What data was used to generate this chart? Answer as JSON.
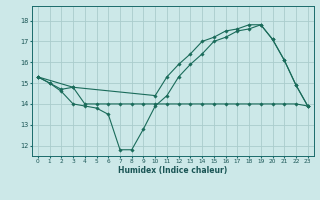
{
  "title": "",
  "xlabel": "Humidex (Indice chaleur)",
  "bg_color": "#cce8e8",
  "grid_color": "#aacccc",
  "line_color": "#1a6b5a",
  "xlim": [
    -0.5,
    23.5
  ],
  "ylim": [
    11.5,
    18.7
  ],
  "xticks": [
    0,
    1,
    2,
    3,
    4,
    5,
    6,
    7,
    8,
    9,
    10,
    11,
    12,
    13,
    14,
    15,
    16,
    17,
    18,
    19,
    20,
    21,
    22,
    23
  ],
  "yticks": [
    12,
    13,
    14,
    15,
    16,
    17,
    18
  ],
  "line1_x": [
    0,
    1,
    2,
    3,
    4,
    5,
    6,
    7,
    8,
    9,
    10,
    11,
    12,
    13,
    14,
    15,
    16,
    17,
    18,
    19,
    20,
    21,
    22,
    23
  ],
  "line1_y": [
    15.3,
    15.0,
    14.6,
    14.0,
    13.9,
    13.8,
    13.5,
    11.8,
    11.8,
    12.8,
    13.9,
    14.4,
    15.3,
    15.9,
    16.4,
    17.0,
    17.2,
    17.5,
    17.6,
    17.8,
    17.1,
    16.1,
    14.9,
    13.9
  ],
  "line2_x": [
    0,
    1,
    2,
    3,
    4,
    5,
    6,
    7,
    8,
    9,
    10,
    11,
    12,
    13,
    14,
    15,
    16,
    17,
    18,
    19,
    20,
    21,
    22,
    23
  ],
  "line2_y": [
    15.3,
    15.0,
    14.7,
    14.8,
    14.0,
    14.0,
    14.0,
    14.0,
    14.0,
    14.0,
    14.0,
    14.0,
    14.0,
    14.0,
    14.0,
    14.0,
    14.0,
    14.0,
    14.0,
    14.0,
    14.0,
    14.0,
    14.0,
    13.9
  ],
  "line3_x": [
    0,
    3,
    10,
    11,
    12,
    13,
    14,
    15,
    16,
    17,
    18,
    19,
    20,
    21,
    22,
    23
  ],
  "line3_y": [
    15.3,
    14.8,
    14.4,
    15.3,
    15.9,
    16.4,
    17.0,
    17.2,
    17.5,
    17.6,
    17.8,
    17.8,
    17.1,
    16.1,
    14.9,
    13.9
  ]
}
